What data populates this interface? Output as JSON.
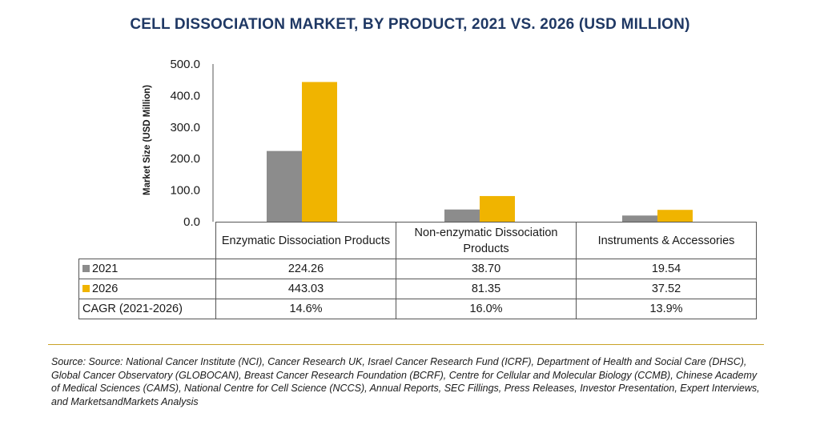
{
  "chart_data": {
    "type": "bar",
    "title": "CELL DISSOCIATION MARKET, BY PRODUCT, 2021 VS. 2026 (USD MILLION)",
    "ylabel": "Market Size (USD Million)",
    "ylim": [
      0,
      500
    ],
    "yticks": [
      "0.0",
      "100.0",
      "200.0",
      "300.0",
      "400.0",
      "500.0"
    ],
    "categories": [
      "Enzymatic Dissociation Products",
      "Non-enzymatic Dissociation Products",
      "Instruments & Accessories"
    ],
    "series": [
      {
        "name": "2021",
        "color": "#8c8c8c",
        "values": [
          224.26,
          38.7,
          19.54
        ],
        "labels": [
          "224.26",
          "38.70",
          "19.54"
        ]
      },
      {
        "name": "2026",
        "color": "#f0b400",
        "values": [
          443.03,
          81.35,
          37.52
        ],
        "labels": [
          "443.03",
          "81.35",
          "37.52"
        ]
      }
    ],
    "cagr_label": "CAGR (2021-2026)",
    "cagr": [
      "14.6%",
      "16.0%",
      "13.9%"
    ],
    "grid": false,
    "legend": "table"
  },
  "source": "Source: Source: National Cancer Institute (NCI), Cancer Research UK, Israel Cancer Research Fund (ICRF), Department of Health and Social Care (DHSC), Global Cancer Observatory (GLOBOCAN), Breast Cancer Research Foundation (BCRF), Centre for Cellular and Molecular Biology (CCMB), Chinese Academy of Medical Sciences (CAMS), National Centre for Cell Science (NCCS), Annual Reports, SEC Fillings, Press Releases, Investor Presentation, Expert Interviews, and MarketsandMarkets Analysis"
}
